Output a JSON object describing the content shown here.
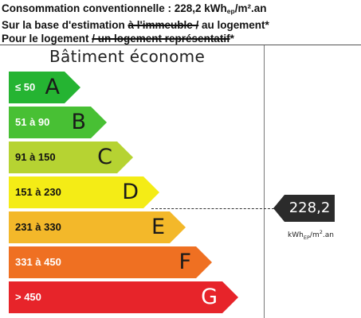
{
  "header": {
    "line1_prefix": "Consommation conventionnelle : 228,2 kWh",
    "line1_sub": "ep",
    "line1_suffix": "/m².an",
    "line2_pre": "Sur la base d'estimation ",
    "line2_struck": "à l'immeuble /",
    "line2_post": " au logement*",
    "line3_pre": "Pour le logement ",
    "line3_struck": "/ un logement représentatif",
    "line3_post": "*"
  },
  "label_title": "Bâtiment économe",
  "classes": [
    {
      "range": "≤ 50",
      "letter": "A",
      "color": "#25b432"
    },
    {
      "range": "51 à 90",
      "letter": "B",
      "color": "#48c034"
    },
    {
      "range": "91 à 150",
      "letter": "C",
      "color": "#b6d332"
    },
    {
      "range": "151 à 230",
      "letter": "D",
      "color": "#f4ec16"
    },
    {
      "range": "231 à 330",
      "letter": "E",
      "color": "#f3b82a"
    },
    {
      "range": "331 à 450",
      "letter": "F",
      "color": "#ef7022"
    },
    {
      "range": "> 450",
      "letter": "G",
      "color": "#e7242a"
    }
  ],
  "current": {
    "value": "228,2",
    "class": "D",
    "unit_main": "kWh",
    "unit_sub": "EP",
    "unit_mid": "/m",
    "unit_sup": "2",
    "unit_end": ".an"
  }
}
